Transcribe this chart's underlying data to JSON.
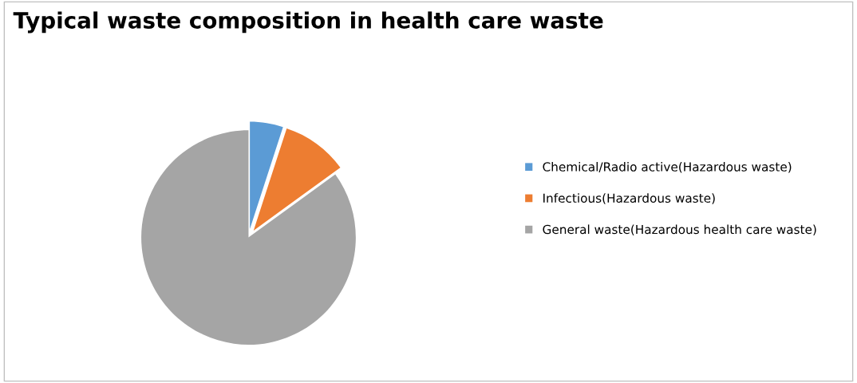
{
  "chart_data": {
    "type": "pie",
    "title": "Typical waste composition in health care waste",
    "categories": [
      "Chemical/Radio active(Hazardous waste)",
      "Infectious(Hazardous waste)",
      "General waste(Hazardous health care waste)"
    ],
    "values": [
      5,
      10,
      85
    ],
    "colors": [
      "#5b9bd5",
      "#ed7d31",
      "#a5a5a5"
    ],
    "legend": "right"
  }
}
